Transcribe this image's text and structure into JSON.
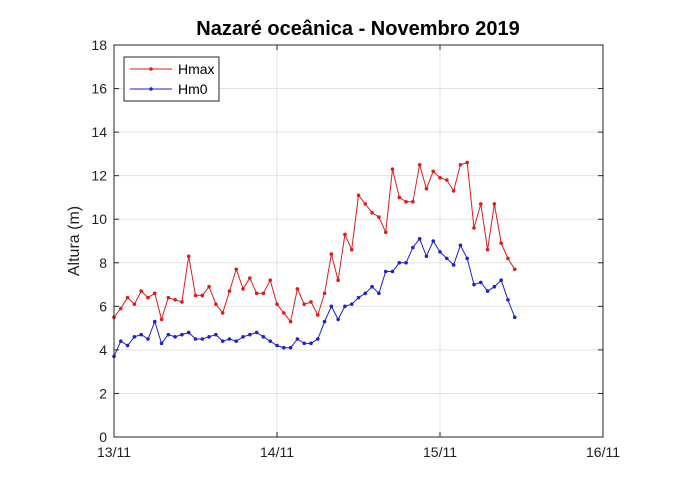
{
  "chart_data": {
    "type": "line",
    "title": "Nazaré oceânica - Novembro  2019",
    "xlabel": "",
    "ylabel": "Altura (m)",
    "xlim": [
      0,
      3
    ],
    "ylim": [
      0,
      18
    ],
    "x_ticks": [
      {
        "value": 0,
        "label": "13/11"
      },
      {
        "value": 1,
        "label": "14/11"
      },
      {
        "value": 2,
        "label": "15/11"
      },
      {
        "value": 3,
        "label": "16/11"
      }
    ],
    "y_ticks": [
      0,
      2,
      4,
      6,
      8,
      10,
      12,
      14,
      16,
      18
    ],
    "grid": true,
    "legend_position": "top-left",
    "x_step_days": 0.04167,
    "series": [
      {
        "name": "Hmax",
        "color": "#e31a1c",
        "values": [
          5.5,
          5.9,
          6.4,
          6.1,
          6.7,
          6.4,
          6.6,
          5.4,
          6.4,
          6.3,
          6.2,
          8.3,
          6.5,
          6.5,
          6.9,
          6.1,
          5.7,
          6.7,
          7.7,
          6.8,
          7.3,
          6.6,
          6.6,
          7.2,
          6.1,
          5.7,
          5.3,
          6.8,
          6.1,
          6.2,
          5.6,
          6.6,
          8.4,
          7.2,
          9.3,
          8.6,
          11.1,
          10.7,
          10.3,
          10.1,
          9.4,
          12.3,
          11.0,
          10.8,
          10.8,
          12.5,
          11.4,
          12.2,
          11.9,
          11.8,
          11.3,
          12.5,
          12.6,
          9.6,
          10.7,
          8.6,
          10.7,
          8.9,
          8.2,
          7.7
        ]
      },
      {
        "name": "Hm0",
        "color": "#1f1fd6",
        "values": [
          3.7,
          4.4,
          4.2,
          4.6,
          4.7,
          4.5,
          5.3,
          4.3,
          4.7,
          4.6,
          4.7,
          4.8,
          4.5,
          4.5,
          4.6,
          4.7,
          4.4,
          4.5,
          4.4,
          4.6,
          4.7,
          4.8,
          4.6,
          4.4,
          4.2,
          4.1,
          4.1,
          4.5,
          4.3,
          4.3,
          4.5,
          5.3,
          6.0,
          5.4,
          6.0,
          6.1,
          6.4,
          6.6,
          6.9,
          6.6,
          7.6,
          7.6,
          8.0,
          8.0,
          8.7,
          9.1,
          8.3,
          9.0,
          8.5,
          8.2,
          7.9,
          8.8,
          8.2,
          7.0,
          7.1,
          6.7,
          6.9,
          7.2,
          6.3,
          5.5
        ]
      }
    ]
  }
}
